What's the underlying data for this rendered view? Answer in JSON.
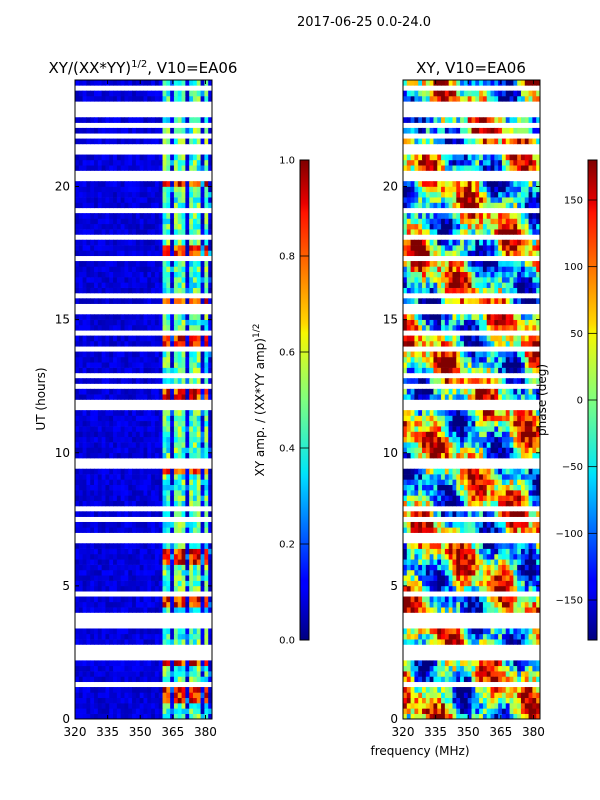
{
  "figure": {
    "suptitle": "2017-06-25 0.0-24.0",
    "xlabel": "frequency (MHz)",
    "colors": {
      "jet_low": "#00007f",
      "jet_mid": "#7fff7f",
      "jet_high": "#7f0000",
      "gap": "#ffffff"
    }
  },
  "chart_data": [
    {
      "type": "heatmap",
      "title": "XY/(XX*YY)^{1/2}, V10=EA06",
      "title_text": "XY/(XX*YY)",
      "title_sup": "1/2",
      "title_suffix": ", V10=EA06",
      "xlabel": "",
      "ylabel": "UT (hours)",
      "xlim": [
        320,
        383
      ],
      "ylim": [
        0,
        24
      ],
      "xticks": [
        "320",
        "335",
        "350",
        "365",
        "380"
      ],
      "yticks": [
        "0",
        "5",
        "10",
        "15",
        "20"
      ],
      "bright_channels_mhz": [
        361.5,
        363.5,
        366,
        367.5,
        370.5,
        373,
        374.5,
        377.5,
        380.5
      ],
      "bright_hours": [
        0.8,
        2.2,
        4.5,
        6.0,
        9.5,
        12.0,
        14.3,
        15.7,
        17.5,
        20.3
      ],
      "colorbar": {
        "label_text": "XY amp. / (XX*YY amp)",
        "label_sup": "1/2",
        "range": [
          0.0,
          1.0
        ],
        "ticks": [
          "0.0",
          "0.2",
          "0.4",
          "0.6",
          "0.8",
          "1.0"
        ]
      }
    },
    {
      "type": "heatmap",
      "title": "XY, V10=EA06",
      "xlabel": "frequency (MHz)",
      "ylabel": "",
      "xlim": [
        320,
        383
      ],
      "ylim": [
        0,
        24
      ],
      "xticks": [
        "320",
        "335",
        "350",
        "365",
        "380"
      ],
      "yticks": [
        "0",
        "5",
        "10",
        "15",
        "20"
      ],
      "colorbar": {
        "label": "phase (deg)",
        "range": [
          -180,
          180
        ],
        "ticks": [
          "−150",
          "−100",
          "−50",
          "0",
          "50",
          "100",
          "150"
        ]
      }
    }
  ]
}
